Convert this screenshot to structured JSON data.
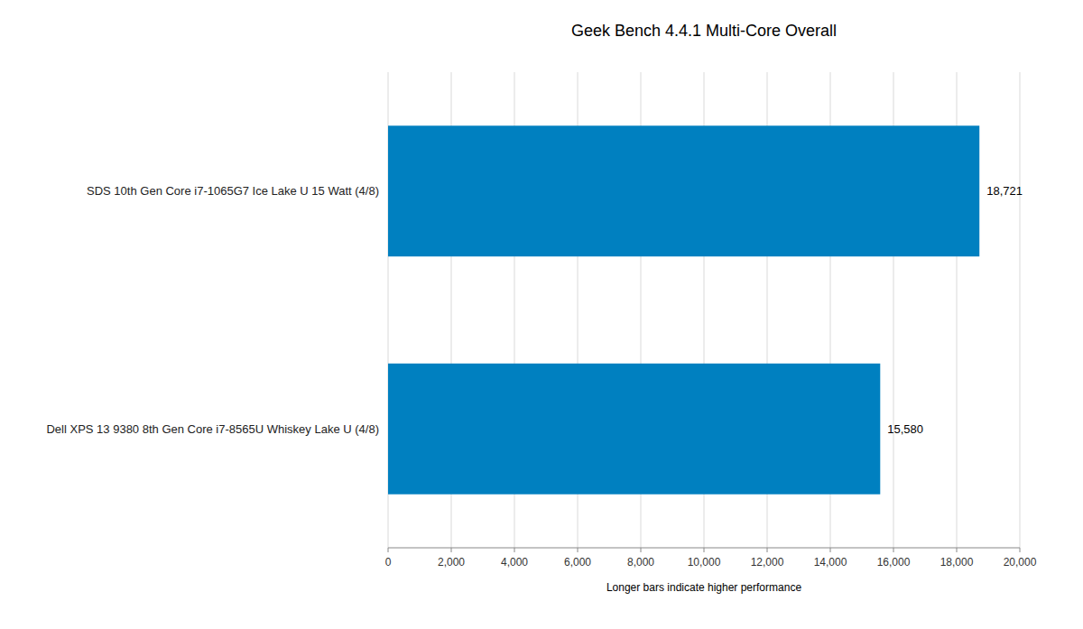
{
  "chart_data": {
    "type": "bar",
    "orientation": "horizontal",
    "title": "Geek Bench 4.4.1 Multi-Core Overall",
    "categories": [
      "SDS 10th Gen Core i7-1065G7 Ice Lake U 15 Watt (4/8)",
      "Dell XPS 13 9380 8th Gen Core i7-8565U Whiskey Lake U (4/8)"
    ],
    "values": [
      18721,
      15580
    ],
    "value_labels": [
      "18,721",
      "15,580"
    ],
    "data_labels": true,
    "color": "#0080C0",
    "xlabel": "Longer bars indicate higher performance",
    "xlim": [
      0,
      20000
    ],
    "xticks": [
      0,
      {
        "value": 2000,
        "label": "2,000"
      },
      {
        "value": 4000,
        "label": "4,000"
      },
      {
        "value": 6000,
        "label": "6,000"
      },
      {
        "value": 8000,
        "label": "8,000"
      },
      {
        "value": 10000,
        "label": "10,000"
      },
      {
        "value": 12000,
        "label": "12,000"
      },
      {
        "value": 14000,
        "label": "14,000"
      },
      {
        "value": 16000,
        "label": "16,000"
      },
      {
        "value": 18000,
        "label": "18,000"
      },
      {
        "value": 20000,
        "label": "20,000"
      }
    ],
    "grid": true
  }
}
